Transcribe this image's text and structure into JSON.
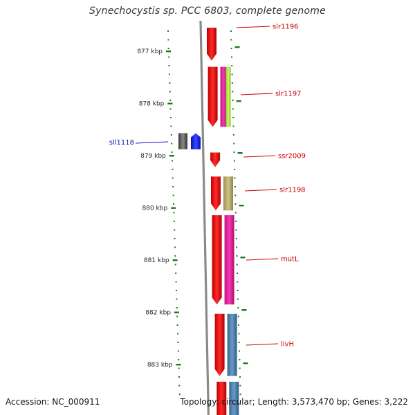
{
  "header": {
    "title": "Synechocystis sp. PCC 6803, complete genome"
  },
  "footer": {
    "accession": "Accession: NC_000911",
    "topology": "Topology: circular; Length: 3,573,470 bp; Genes: 3,222"
  },
  "scale": {
    "unit": "kbp",
    "ticks": [
      {
        "value": 877,
        "label": "877 kbp"
      },
      {
        "value": 878,
        "label": "878 kbp"
      },
      {
        "value": 879,
        "label": "879 kbp"
      },
      {
        "value": 880,
        "label": "880 kbp"
      },
      {
        "value": 881,
        "label": "881 kbp"
      },
      {
        "value": 882,
        "label": "882 kbp"
      },
      {
        "value": 883,
        "label": "883 kbp"
      }
    ]
  },
  "colors": {
    "cds": "#ff0000",
    "cds_reverse": "#555555",
    "track_magenta": "#e8169a",
    "track_lime": "#b0e84a",
    "track_khaki": "#b9ad6a",
    "track_steelblue": "#4a7fb0",
    "track_blue": "#0a1aff",
    "backbone": "#8a8a8a",
    "ticks": "#1a7a1a",
    "label_forward": "#cc0000",
    "label_reverse": "#1010cc"
  },
  "genes": [
    {
      "name": "slr1196",
      "strand": "+",
      "start": 876.55,
      "end": 877.18
    },
    {
      "name": "slr1197",
      "strand": "+",
      "start": 877.3,
      "end": 878.45,
      "tracks": [
        "magenta",
        "lime"
      ]
    },
    {
      "name": "sll1118",
      "strand": "-",
      "start": 878.57,
      "end": 878.88,
      "tracks": [
        "blue"
      ]
    },
    {
      "name": "ssr2009",
      "strand": "+",
      "start": 878.94,
      "end": 879.22
    },
    {
      "name": "slr1198",
      "strand": "+",
      "start": 879.4,
      "end": 880.05,
      "tracks": [
        "khaki"
      ]
    },
    {
      "name": "mutL",
      "strand": "+",
      "start": 880.14,
      "end": 881.85,
      "tracks": [
        "magenta"
      ]
    },
    {
      "name": "livH",
      "strand": "+",
      "start": 882.03,
      "end": 883.22,
      "tracks": [
        "steelblue"
      ]
    },
    {
      "name": "",
      "strand": "+",
      "start": 883.33,
      "end": 884.1,
      "tracks": [
        "steelblue"
      ]
    }
  ]
}
